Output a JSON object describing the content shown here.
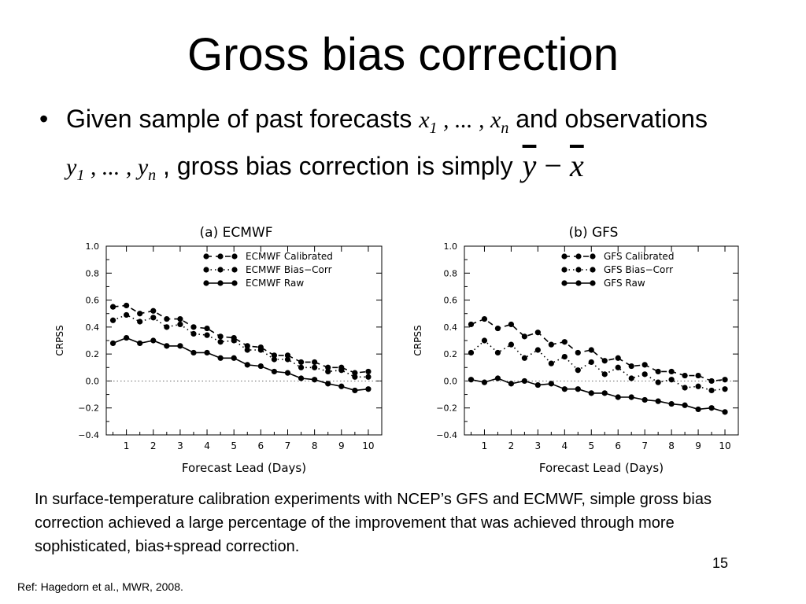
{
  "slide": {
    "title": "Gross bias correction",
    "bullet_symbol": "•",
    "bullet": {
      "t1": "Given sample of past forecasts ",
      "x_start": "x",
      "x_start_sub": "1",
      "ellipsis": " , ... , ",
      "x_end": "x",
      "x_end_sub": "n",
      "t2": " and observations ",
      "y_start": "y",
      "y_start_sub": "1",
      "y_end": "y",
      "y_end_sub": "n",
      "t3": " , gross bias correction is simply",
      "expr_y": "y",
      "expr_minus": "−",
      "expr_x": "x"
    },
    "caption": "In surface-temperature calibration experiments with NCEP’s GFS and ECMWF, simple gross bias correction achieved a large percentage of the improvement that was achieved through more sophisticated, bias+spread correction.",
    "page_number": "15",
    "reference": "Ref: Hagedorn et al., MWR, 2008."
  },
  "chart_data": [
    {
      "type": "line",
      "title": "(a) ECMWF",
      "xlabel": "Forecast Lead (Days)",
      "ylabel": "CRPSS",
      "xlim": [
        0.25,
        10.5
      ],
      "ylim": [
        -0.4,
        1.0
      ],
      "xticks": [
        "1",
        "2",
        "3",
        "4",
        "5",
        "6",
        "7",
        "8",
        "9",
        "10"
      ],
      "yticks": [
        "1.0",
        "0.8",
        "0.6",
        "0.4",
        "0.2",
        "0.0",
        "−0.2",
        "−0.4"
      ],
      "zero_line": "dotted",
      "legend_position": "top-right",
      "x": [
        0.5,
        1,
        1.5,
        2,
        2.5,
        3,
        3.5,
        4,
        4.5,
        5,
        5.5,
        6,
        6.5,
        7,
        7.5,
        8,
        8.5,
        9,
        9.5,
        10
      ],
      "series": [
        {
          "name": "ECMWF Calibrated",
          "style": "dashed",
          "values": [
            0.55,
            0.56,
            0.5,
            0.52,
            0.46,
            0.46,
            0.4,
            0.39,
            0.33,
            0.32,
            0.26,
            0.25,
            0.19,
            0.19,
            0.14,
            0.14,
            0.1,
            0.1,
            0.06,
            0.07
          ]
        },
        {
          "name": "ECMWF Bias−Corr",
          "style": "dotted",
          "values": [
            0.45,
            0.49,
            0.44,
            0.47,
            0.4,
            0.42,
            0.35,
            0.34,
            0.29,
            0.3,
            0.23,
            0.23,
            0.16,
            0.16,
            0.1,
            0.1,
            0.07,
            0.08,
            0.03,
            0.03
          ]
        },
        {
          "name": "ECMWF Raw",
          "style": "solid",
          "values": [
            0.28,
            0.32,
            0.28,
            0.3,
            0.26,
            0.26,
            0.21,
            0.21,
            0.17,
            0.17,
            0.12,
            0.11,
            0.07,
            0.06,
            0.02,
            0.01,
            -0.02,
            -0.04,
            -0.07,
            -0.06
          ]
        }
      ]
    },
    {
      "type": "line",
      "title": "(b) GFS",
      "xlabel": "Forecast Lead (Days)",
      "ylabel": "CRPSS",
      "xlim": [
        0.25,
        10.5
      ],
      "ylim": [
        -0.4,
        1.0
      ],
      "xticks": [
        "1",
        "2",
        "3",
        "4",
        "5",
        "6",
        "7",
        "8",
        "9",
        "10"
      ],
      "yticks": [
        "1.0",
        "0.8",
        "0.6",
        "0.4",
        "0.2",
        "0.0",
        "−0.2",
        "−0.4"
      ],
      "zero_line": "dotted",
      "legend_position": "top-right",
      "x": [
        0.5,
        1,
        1.5,
        2,
        2.5,
        3,
        3.5,
        4,
        4.5,
        5,
        5.5,
        6,
        6.5,
        7,
        7.5,
        8,
        8.5,
        9,
        9.5,
        10
      ],
      "series": [
        {
          "name": "GFS Calibrated",
          "style": "dashed",
          "values": [
            0.42,
            0.46,
            0.39,
            0.42,
            0.33,
            0.36,
            0.27,
            0.29,
            0.21,
            0.23,
            0.15,
            0.17,
            0.11,
            0.12,
            0.07,
            0.07,
            0.04,
            0.04,
            0.0,
            0.01
          ]
        },
        {
          "name": "GFS Bias−Corr",
          "style": "dotted",
          "values": [
            0.21,
            0.3,
            0.21,
            0.27,
            0.17,
            0.23,
            0.13,
            0.18,
            0.08,
            0.14,
            0.05,
            0.1,
            0.02,
            0.05,
            -0.01,
            0.01,
            -0.05,
            -0.04,
            -0.07,
            -0.06
          ]
        },
        {
          "name": "GFS Raw",
          "style": "solid",
          "values": [
            0.01,
            -0.01,
            0.02,
            -0.02,
            0.0,
            -0.03,
            -0.02,
            -0.06,
            -0.06,
            -0.09,
            -0.09,
            -0.12,
            -0.12,
            -0.14,
            -0.15,
            -0.17,
            -0.18,
            -0.21,
            -0.2,
            -0.23
          ]
        }
      ]
    }
  ]
}
